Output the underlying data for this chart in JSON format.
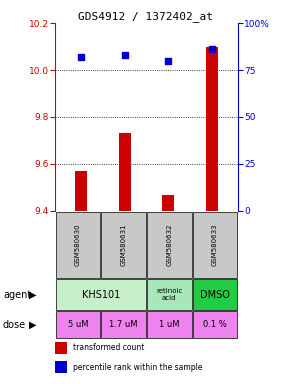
{
  "title": "GDS4912 / 1372402_at",
  "samples": [
    "GSM580630",
    "GSM580631",
    "GSM580632",
    "GSM580633"
  ],
  "red_values": [
    9.57,
    9.73,
    9.47,
    10.1
  ],
  "blue_values": [
    82,
    83,
    80,
    86
  ],
  "ylim_left": [
    9.4,
    10.2
  ],
  "ylim_right": [
    0,
    100
  ],
  "yticks_left": [
    9.4,
    9.6,
    9.8,
    10.0,
    10.2
  ],
  "yticks_right": [
    0,
    25,
    50,
    75,
    100
  ],
  "ytick_labels_right": [
    "0",
    "25",
    "50",
    "75",
    "100%"
  ],
  "red_color": "#CC0000",
  "blue_color": "#0000CC",
  "sample_bg_color": "#C8C8C8",
  "khs101_color": "#C8F0C8",
  "retinoic_color": "#A8E8B8",
  "dmso_color": "#22CC44",
  "dose_color": "#EE82EE",
  "legend_red": "transformed count",
  "legend_blue": "percentile rank within the sample",
  "dose_labels": [
    "5 uM",
    "1.7 uM",
    "1 uM",
    "0.1 %"
  ],
  "x_positions": [
    0,
    1,
    2,
    3
  ],
  "gridline_yticks": [
    9.6,
    9.8,
    10.0
  ]
}
